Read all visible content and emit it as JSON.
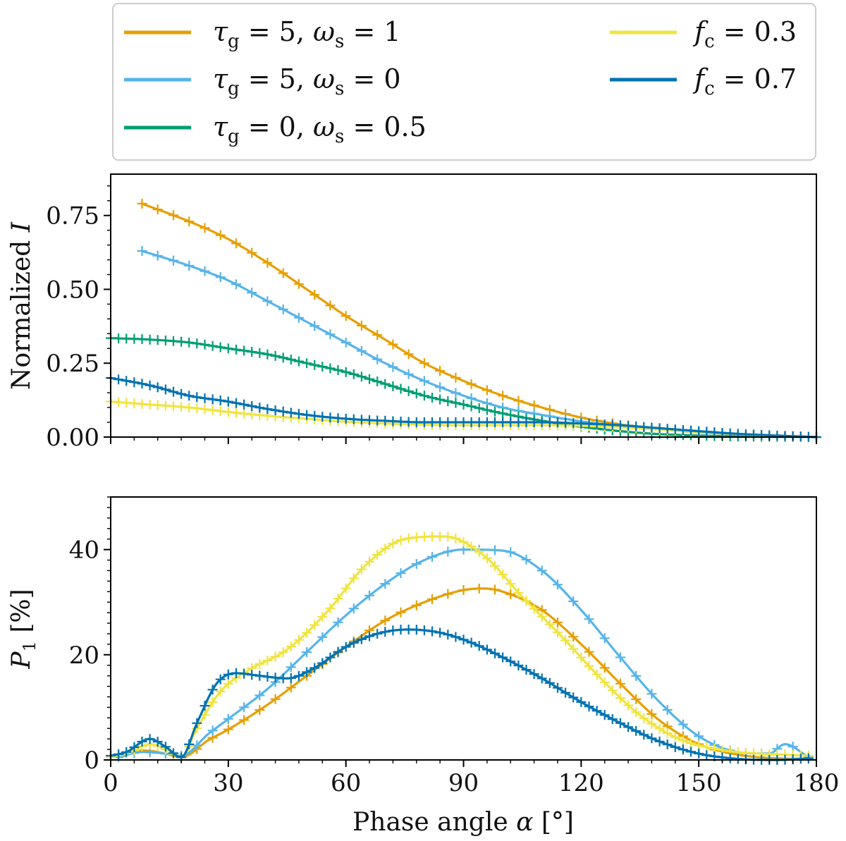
{
  "legend": {
    "entries": [
      {
        "series": "tg5_ws1",
        "symbol": "τ",
        "sub": "g",
        "text": " = 5, ",
        "symbol2": "ω",
        "sub2": "s",
        "text2": " = 1"
      },
      {
        "series": "tg5_ws0",
        "symbol": "τ",
        "sub": "g",
        "text": " = 5, ",
        "symbol2": "ω",
        "sub2": "s",
        "text2": " = 0"
      },
      {
        "series": "tg0_ws05",
        "symbol": "τ",
        "sub": "g",
        "text": " = 0, ",
        "symbol2": "ω",
        "sub2": "s",
        "text2": " = 0.5"
      },
      {
        "series": "fc03",
        "symbol": "f",
        "sub": "c",
        "text": " = 0.3",
        "symbol2": "",
        "sub2": "",
        "text2": ""
      },
      {
        "series": "fc07",
        "symbol": "f",
        "sub": "c",
        "text": " = 0.7",
        "symbol2": "",
        "sub2": "",
        "text2": ""
      }
    ]
  },
  "colors": {
    "tg5_ws1": "#e69f00",
    "tg5_ws0": "#56b4e9",
    "tg0_ws05": "#009e73",
    "fc03": "#f0e442",
    "fc07": "#0072b2"
  },
  "chart_data": [
    {
      "type": "line",
      "panel": "top",
      "xlabel": "",
      "ylabel": "Normalized I",
      "ylabel_main": "Normalized ",
      "ylabel_italic": "I",
      "xlim": [
        0,
        180
      ],
      "ylim": [
        0,
        0.89
      ],
      "yticks": [
        0,
        0.25,
        0.5,
        0.75
      ],
      "ytick_labels": [
        "0.00",
        "0.25",
        "0.50",
        "0.75"
      ],
      "xticks": [
        0,
        30,
        60,
        90,
        120,
        150,
        180
      ],
      "markers": "plus",
      "series": [
        {
          "id": "tg5_ws1",
          "name": "τg = 5, ωs = 1",
          "start": 8,
          "step": 4,
          "x": [
            8,
            20,
            30,
            40,
            50,
            60,
            70,
            80,
            90,
            100,
            110,
            120,
            130,
            140,
            150,
            160,
            170,
            180
          ],
          "y": [
            0.79,
            0.73,
            0.67,
            0.59,
            0.5,
            0.41,
            0.33,
            0.25,
            0.19,
            0.14,
            0.1,
            0.066,
            0.043,
            0.027,
            0.016,
            0.009,
            0.004,
            0.0
          ]
        },
        {
          "id": "tg5_ws0",
          "name": "τg = 5, ωs = 0",
          "start": 8,
          "step": 4,
          "x": [
            8,
            20,
            30,
            40,
            50,
            60,
            70,
            80,
            90,
            100,
            110,
            120,
            130,
            140,
            150,
            160,
            170,
            180
          ],
          "y": [
            0.63,
            0.58,
            0.53,
            0.46,
            0.39,
            0.32,
            0.25,
            0.19,
            0.14,
            0.1,
            0.075,
            0.053,
            0.038,
            0.026,
            0.016,
            0.009,
            0.004,
            0.0
          ]
        },
        {
          "id": "tg0_ws05",
          "name": "τg = 0, ωs = 0.5",
          "start": 0,
          "step": 2,
          "x": [
            0,
            10,
            20,
            30,
            40,
            50,
            60,
            70,
            80,
            90,
            100,
            110,
            120,
            130,
            140,
            150,
            160,
            170,
            180
          ],
          "y": [
            0.335,
            0.33,
            0.32,
            0.3,
            0.28,
            0.25,
            0.22,
            0.18,
            0.14,
            0.11,
            0.08,
            0.055,
            0.035,
            0.02,
            0.01,
            0.005,
            0.002,
            0.001,
            0.0
          ]
        },
        {
          "id": "fc03",
          "name": "fc = 0.3",
          "start": 0,
          "step": 2,
          "x": [
            0,
            10,
            20,
            30,
            40,
            50,
            60,
            70,
            80,
            90,
            100,
            110,
            120,
            130,
            140,
            150,
            160,
            170,
            180
          ],
          "y": [
            0.12,
            0.11,
            0.1,
            0.085,
            0.072,
            0.062,
            0.052,
            0.046,
            0.042,
            0.04,
            0.04,
            0.04,
            0.038,
            0.033,
            0.025,
            0.017,
            0.01,
            0.004,
            0.0
          ]
        },
        {
          "id": "fc07",
          "name": "fc = 0.7",
          "start": 0,
          "step": 2,
          "x": [
            0,
            10,
            20,
            30,
            40,
            50,
            60,
            70,
            80,
            90,
            100,
            110,
            120,
            130,
            140,
            150,
            160,
            170,
            180
          ],
          "y": [
            0.2,
            0.175,
            0.14,
            0.12,
            0.095,
            0.075,
            0.062,
            0.055,
            0.05,
            0.05,
            0.05,
            0.05,
            0.046,
            0.04,
            0.03,
            0.02,
            0.011,
            0.005,
            0.0
          ]
        }
      ]
    },
    {
      "type": "line",
      "panel": "bottom",
      "xlabel": "Phase angle α [°]",
      "xlabel_main": "Phase angle ",
      "xlabel_italic": "α",
      "xlabel_unit": " [°]",
      "ylabel": "P1 [%]",
      "ylabel_italic": "P",
      "ylabel_sub": "1",
      "ylabel_unit": " [%]",
      "xlim": [
        0,
        180
      ],
      "ylim": [
        0,
        50
      ],
      "yticks": [
        0,
        20,
        40
      ],
      "ytick_labels": [
        "0",
        "20",
        "40"
      ],
      "xticks": [
        0,
        30,
        60,
        90,
        120,
        150,
        180
      ],
      "xtick_labels": [
        "0",
        "30",
        "60",
        "90",
        "120",
        "150",
        "180"
      ],
      "markers": "plus",
      "series": [
        {
          "id": "tg5_ws1",
          "name": "τg = 5, ωs = 1",
          "start": 2,
          "step": 4,
          "x": [
            2,
            8,
            14,
            18,
            25,
            30,
            40,
            50,
            60,
            70,
            80,
            90,
            95,
            100,
            110,
            120,
            130,
            140,
            150,
            160,
            170,
            178
          ],
          "y": [
            1.0,
            1.8,
            1.2,
            0.5,
            3.8,
            5.8,
            10.5,
            16.0,
            21.5,
            26.5,
            30.0,
            32.3,
            32.6,
            32.0,
            28.5,
            22.0,
            14.5,
            7.5,
            3.0,
            1.0,
            0.3,
            0.2
          ]
        },
        {
          "id": "tg5_ws0",
          "name": "τg = 5, ωs = 0",
          "start": 2,
          "step": 4,
          "x": [
            2,
            8,
            14,
            18,
            25,
            30,
            40,
            50,
            60,
            70,
            80,
            90,
            100,
            110,
            120,
            130,
            140,
            150,
            160,
            168,
            172,
            178
          ],
          "y": [
            0.5,
            1.5,
            1.2,
            0.8,
            5.0,
            7.8,
            13.5,
            20.5,
            27.5,
            33.5,
            38.0,
            40.0,
            39.8,
            36.0,
            28.5,
            19.5,
            11.0,
            4.5,
            1.5,
            1.2,
            3.0,
            0.5
          ]
        },
        {
          "id": "fc03",
          "name": "fc = 0.3",
          "start": 0,
          "step": 2,
          "x": [
            0,
            5,
            10,
            14,
            18,
            22,
            28,
            35,
            45,
            55,
            65,
            75,
            85,
            95,
            105,
            115,
            125,
            135,
            145,
            155,
            165,
            172,
            178
          ],
          "y": [
            0.5,
            1.5,
            3.0,
            2.0,
            0.5,
            6.0,
            13.0,
            17.0,
            21.0,
            28.0,
            37.0,
            42.0,
            42.5,
            39.0,
            31.0,
            23.5,
            15.5,
            8.5,
            4.0,
            2.0,
            1.2,
            1.0,
            0.8
          ]
        },
        {
          "id": "fc07",
          "name": "fc = 0.7",
          "start": 0,
          "step": 2,
          "x": [
            0,
            4,
            10,
            14,
            18,
            22,
            27,
            32,
            38,
            45,
            52,
            60,
            68,
            76,
            84,
            92,
            100,
            110,
            120,
            130,
            140,
            150,
            160,
            170,
            178
          ],
          "y": [
            0.8,
            1.5,
            4.0,
            2.5,
            0.5,
            7.0,
            14.5,
            16.5,
            16.0,
            15.5,
            17.5,
            21.5,
            24.0,
            24.8,
            24.2,
            22.3,
            19.5,
            15.5,
            11.0,
            7.0,
            3.5,
            1.2,
            0.2,
            0.0,
            0.3
          ]
        }
      ]
    }
  ]
}
